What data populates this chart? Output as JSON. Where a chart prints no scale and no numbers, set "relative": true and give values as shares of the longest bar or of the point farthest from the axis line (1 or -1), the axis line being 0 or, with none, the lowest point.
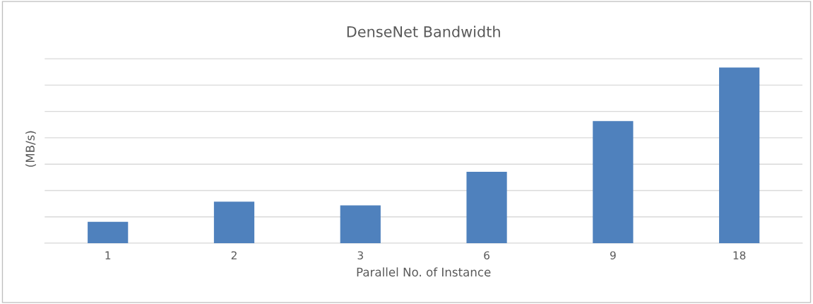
{
  "chart_data": {
    "type": "bar",
    "title": "DenseNet Bandwidth",
    "xlabel": "Parallel No. of Instance",
    "ylabel": "(MB/s)",
    "categories": [
      "1",
      "2",
      "3",
      "6",
      "9",
      "18"
    ],
    "values": [
      0.122,
      0.236,
      0.215,
      0.407,
      0.695,
      1
    ],
    "color": "#4f81bd",
    "relative": true,
    "grid": "y"
  }
}
